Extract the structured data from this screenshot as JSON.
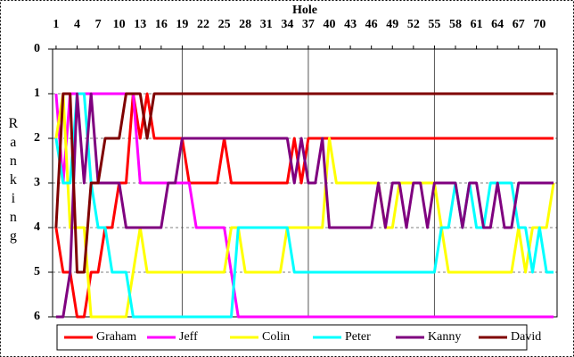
{
  "chart_data": {
    "type": "line",
    "title": "Hole",
    "y_label": "Ranking",
    "x": [
      1,
      2,
      3,
      4,
      5,
      6,
      7,
      8,
      9,
      10,
      11,
      12,
      13,
      14,
      15,
      16,
      17,
      18,
      19,
      20,
      21,
      22,
      23,
      24,
      25,
      26,
      27,
      28,
      29,
      30,
      31,
      32,
      33,
      34,
      35,
      36,
      37,
      38,
      39,
      40,
      41,
      42,
      43,
      44,
      45,
      46,
      47,
      48,
      49,
      50,
      51,
      52,
      53,
      54,
      55,
      56,
      57,
      58,
      59,
      60,
      61,
      62,
      63,
      64,
      65,
      66,
      67,
      68,
      69,
      70,
      71,
      72
    ],
    "xlim": [
      0.5,
      72.5
    ],
    "xticks": [
      1,
      4,
      7,
      10,
      13,
      16,
      19,
      22,
      25,
      28,
      31,
      34,
      37,
      40,
      43,
      46,
      49,
      52,
      55,
      58,
      61,
      64,
      67,
      70
    ],
    "x_grid": [
      19,
      37,
      55
    ],
    "ylim": [
      6,
      0
    ],
    "yticks": [
      0,
      1,
      2,
      3,
      4,
      5,
      6
    ],
    "grid": true,
    "legend": "bottom",
    "series": [
      {
        "name": "Graham",
        "color": "#ff0000",
        "values": [
          4,
          5,
          5,
          6,
          6,
          5,
          5,
          4,
          4,
          3,
          3,
          1,
          2,
          1,
          2,
          2,
          2,
          2,
          2,
          3,
          3,
          3,
          3,
          3,
          2,
          3,
          3,
          3,
          3,
          3,
          3,
          3,
          3,
          3,
          2,
          3,
          2,
          2,
          2,
          2,
          2,
          2,
          2,
          2,
          2,
          2,
          2,
          2,
          2,
          2,
          2,
          2,
          2,
          2,
          2,
          2,
          2,
          2,
          2,
          2,
          2,
          2,
          2,
          2,
          2,
          2,
          2,
          2,
          2,
          2,
          2,
          2
        ]
      },
      {
        "name": "Jeff",
        "color": "#ff00ff",
        "values": [
          1,
          3,
          1,
          1,
          1,
          1,
          1,
          1,
          1,
          1,
          1,
          1,
          3,
          3,
          3,
          3,
          3,
          3,
          3,
          3,
          4,
          4,
          4,
          4,
          4,
          5,
          6,
          6,
          6,
          6,
          6,
          6,
          6,
          6,
          6,
          6,
          6,
          6,
          6,
          6,
          6,
          6,
          6,
          6,
          6,
          6,
          6,
          6,
          6,
          6,
          6,
          6,
          6,
          6,
          6,
          6,
          6,
          6,
          6,
          6,
          6,
          6,
          6,
          6,
          6,
          6,
          6,
          6,
          6,
          6,
          6,
          6
        ]
      },
      {
        "name": "Colin",
        "color": "#ffff00",
        "values": [
          2,
          1,
          4,
          4,
          4,
          6,
          6,
          6,
          6,
          6,
          6,
          5,
          4,
          5,
          5,
          5,
          5,
          5,
          5,
          5,
          5,
          5,
          5,
          5,
          5,
          4,
          4,
          5,
          5,
          5,
          5,
          5,
          5,
          4,
          4,
          4,
          4,
          4,
          4,
          2,
          3,
          3,
          3,
          3,
          3,
          3,
          3,
          4,
          4,
          3,
          3,
          3,
          3,
          3,
          3,
          4,
          5,
          5,
          5,
          5,
          5,
          5,
          5,
          5,
          5,
          5,
          4,
          5,
          4,
          4,
          4,
          3
        ]
      },
      {
        "name": "Peter",
        "color": "#00ffff",
        "values": [
          2,
          3,
          3,
          1,
          1,
          3,
          4,
          4,
          5,
          5,
          5,
          6,
          6,
          6,
          6,
          6,
          6,
          6,
          6,
          6,
          6,
          6,
          6,
          6,
          6,
          6,
          4,
          4,
          4,
          4,
          4,
          4,
          4,
          4,
          5,
          5,
          5,
          5,
          5,
          5,
          5,
          5,
          5,
          5,
          5,
          5,
          5,
          5,
          5,
          5,
          5,
          5,
          5,
          5,
          5,
          4,
          4,
          3,
          4,
          3,
          4,
          4,
          3,
          3,
          3,
          3,
          4,
          4,
          5,
          4,
          5,
          5
        ]
      },
      {
        "name": "Kanny",
        "color": "#7f007f",
        "values": [
          6,
          6,
          5,
          1,
          3,
          1,
          3,
          3,
          3,
          3,
          4,
          4,
          4,
          4,
          4,
          4,
          3,
          3,
          2,
          2,
          2,
          2,
          2,
          2,
          2,
          2,
          2,
          2,
          2,
          2,
          2,
          2,
          2,
          2,
          3,
          2,
          3,
          3,
          2,
          4,
          4,
          4,
          4,
          4,
          4,
          4,
          3,
          4,
          3,
          3,
          4,
          3,
          3,
          4,
          3,
          3,
          3,
          3,
          4,
          3,
          3,
          4,
          4,
          3,
          4,
          4,
          3,
          3,
          3,
          3,
          3,
          3
        ]
      },
      {
        "name": "David",
        "color": "#7f0000",
        "values": [
          4,
          1,
          1,
          5,
          5,
          3,
          3,
          2,
          2,
          2,
          1,
          1,
          1,
          2,
          1,
          1,
          1,
          1,
          1,
          1,
          1,
          1,
          1,
          1,
          1,
          1,
          1,
          1,
          1,
          1,
          1,
          1,
          1,
          1,
          1,
          1,
          1,
          1,
          1,
          1,
          1,
          1,
          1,
          1,
          1,
          1,
          1,
          1,
          1,
          1,
          1,
          1,
          1,
          1,
          1,
          1,
          1,
          1,
          1,
          1,
          1,
          1,
          1,
          1,
          1,
          1,
          1,
          1,
          1,
          1,
          1,
          1
        ]
      }
    ]
  }
}
